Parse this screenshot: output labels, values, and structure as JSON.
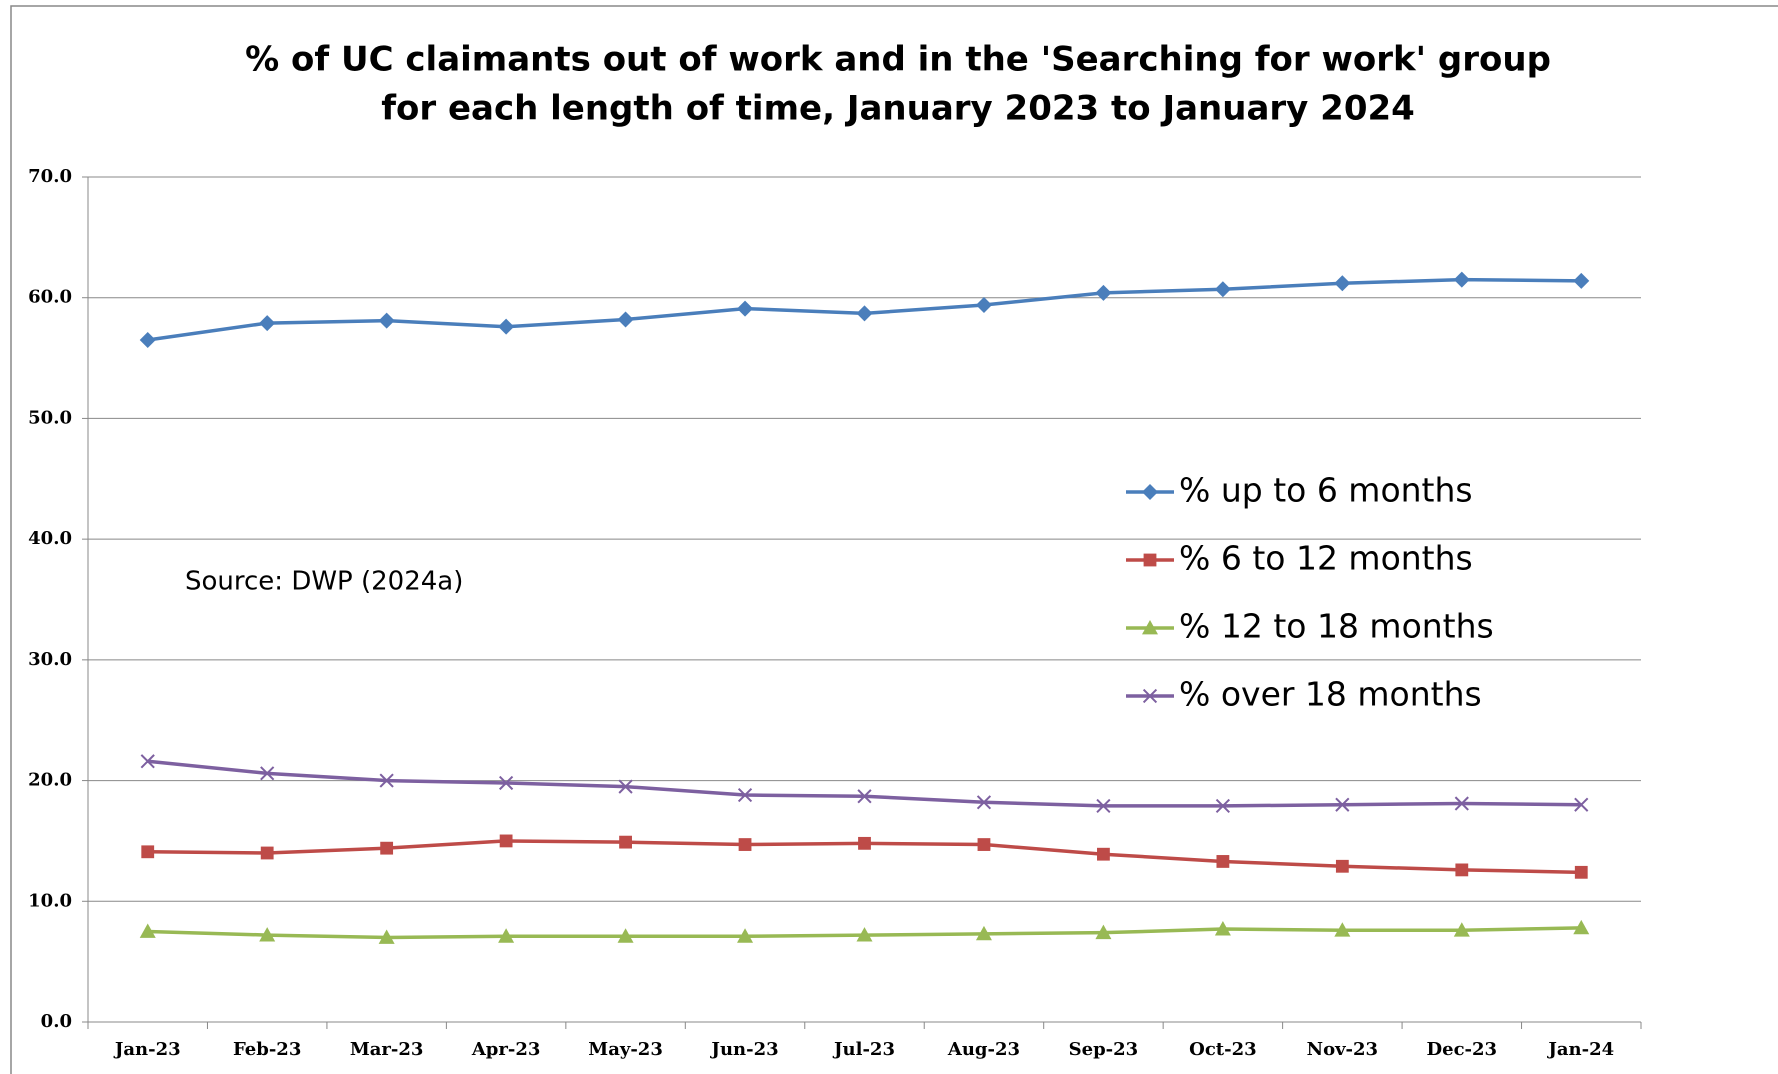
{
  "chart_data": {
    "type": "line",
    "title": [
      "% of UC claimants out of work and in the 'Searching for work' group",
      "for each length of time, January 2023 to January 2024"
    ],
    "annotation": "Source: DWP (2024a)",
    "categories": [
      "Jan-23",
      "Feb-23",
      "Mar-23",
      "Apr-23",
      "May-23",
      "Jun-23",
      "Jul-23",
      "Aug-23",
      "Sep-23",
      "Oct-23",
      "Nov-23",
      "Dec-23",
      "Jan-24"
    ],
    "series": [
      {
        "name": "% up to 6 months",
        "color": "#4a7ebb",
        "marker": "diamond",
        "values": [
          56.5,
          57.9,
          58.1,
          57.6,
          58.2,
          59.1,
          58.7,
          59.4,
          60.4,
          60.7,
          61.2,
          61.5,
          61.4
        ]
      },
      {
        "name": "% 6 to 12 months",
        "color": "#be4b48",
        "marker": "square",
        "values": [
          14.1,
          14.0,
          14.4,
          15.0,
          14.9,
          14.7,
          14.8,
          14.7,
          13.9,
          13.3,
          12.9,
          12.6,
          12.4
        ]
      },
      {
        "name": "% 12 to 18 months",
        "color": "#98b954",
        "marker": "triangle",
        "values": [
          7.5,
          7.2,
          7.0,
          7.1,
          7.1,
          7.1,
          7.2,
          7.3,
          7.4,
          7.7,
          7.6,
          7.6,
          7.8
        ]
      },
      {
        "name": "% over 18 months",
        "color": "#7d60a0",
        "marker": "x",
        "values": [
          21.6,
          20.6,
          20.0,
          19.8,
          19.5,
          18.8,
          18.7,
          18.2,
          17.9,
          17.9,
          18.0,
          18.1,
          18.0
        ]
      }
    ],
    "ylim": [
      0,
      70
    ],
    "yticks": [
      {
        "value": 0,
        "label": "0.0"
      },
      {
        "value": 10,
        "label": "10.0"
      },
      {
        "value": 20,
        "label": "20.0"
      },
      {
        "value": 30,
        "label": "30.0"
      },
      {
        "value": 40,
        "label": "40.0"
      },
      {
        "value": 50,
        "label": "50.0"
      },
      {
        "value": 60,
        "label": "60.0"
      },
      {
        "value": 70,
        "label": "70.0"
      }
    ],
    "grid": true
  }
}
